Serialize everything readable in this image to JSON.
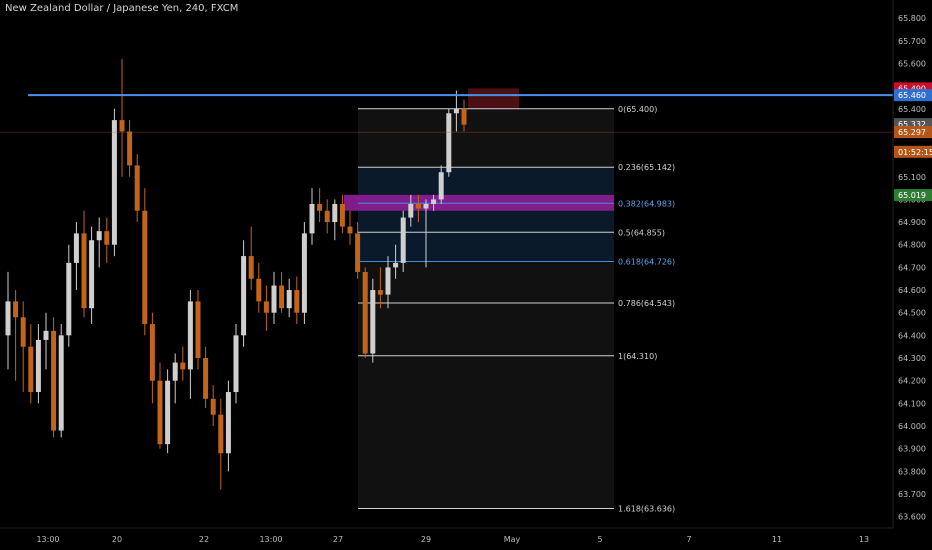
{
  "header": {
    "symbol_title": "New Zealand Dollar / Japanese Yen, 240, FXCM"
  },
  "colors": {
    "background": "#000000",
    "bull_candle": "#cfcfcf",
    "bear_candle": "#c2651b",
    "axis_text": "#bdbdbd",
    "horizontal_line": "#4a8fe8",
    "fib_box": "#111111",
    "fib_zone": "#0a1a2a",
    "fib_highlight": "#8e1f97",
    "stop_zone": "#4b1014",
    "target_zone": "#0f2a14"
  },
  "chart_data": {
    "type": "candlestick",
    "title": "New Zealand Dollar / Japanese Yen, 240, FXCM",
    "ylim": [
      63.55,
      65.88
    ],
    "y_ticks": [
      "65.800",
      "65.700",
      "65.600",
      "65.500",
      "65.400",
      "65.300",
      "65.200",
      "65.100",
      "65.000",
      "64.900",
      "64.800",
      "64.700",
      "64.600",
      "64.500",
      "64.400",
      "64.300",
      "64.200",
      "64.100",
      "64.000",
      "63.900",
      "63.800",
      "63.700",
      "63.600"
    ],
    "x_ticks": [
      "13:00",
      "20",
      "22",
      "13:00",
      "27",
      "29",
      "May",
      "5",
      "7",
      "11",
      "13"
    ],
    "candles": [
      {
        "o": 64.4,
        "h": 64.68,
        "l": 64.25,
        "c": 64.55
      },
      {
        "o": 64.55,
        "h": 64.6,
        "l": 64.2,
        "c": 64.48
      },
      {
        "o": 64.48,
        "h": 64.55,
        "l": 64.15,
        "c": 64.35
      },
      {
        "o": 64.35,
        "h": 64.45,
        "l": 64.1,
        "c": 64.15
      },
      {
        "o": 64.15,
        "h": 64.45,
        "l": 64.1,
        "c": 64.38
      },
      {
        "o": 64.38,
        "h": 64.5,
        "l": 64.25,
        "c": 64.42
      },
      {
        "o": 64.42,
        "h": 64.48,
        "l": 63.95,
        "c": 63.98
      },
      {
        "o": 63.98,
        "h": 64.45,
        "l": 63.95,
        "c": 64.4
      },
      {
        "o": 64.4,
        "h": 64.8,
        "l": 64.35,
        "c": 64.72
      },
      {
        "o": 64.72,
        "h": 64.9,
        "l": 64.6,
        "c": 64.85
      },
      {
        "o": 64.85,
        "h": 64.95,
        "l": 64.48,
        "c": 64.52
      },
      {
        "o": 64.52,
        "h": 64.88,
        "l": 64.45,
        "c": 64.82
      },
      {
        "o": 64.82,
        "h": 64.92,
        "l": 64.7,
        "c": 64.86
      },
      {
        "o": 64.86,
        "h": 64.92,
        "l": 64.72,
        "c": 64.8
      },
      {
        "o": 64.8,
        "h": 65.4,
        "l": 64.75,
        "c": 65.35
      },
      {
        "o": 65.35,
        "h": 65.62,
        "l": 65.1,
        "c": 65.3
      },
      {
        "o": 65.3,
        "h": 65.35,
        "l": 65.1,
        "c": 65.15
      },
      {
        "o": 65.15,
        "h": 65.2,
        "l": 64.9,
        "c": 64.95
      },
      {
        "o": 64.95,
        "h": 65.05,
        "l": 64.4,
        "c": 64.45
      },
      {
        "o": 64.45,
        "h": 64.5,
        "l": 64.1,
        "c": 64.2
      },
      {
        "o": 64.2,
        "h": 64.28,
        "l": 63.9,
        "c": 63.92
      },
      {
        "o": 63.92,
        "h": 64.25,
        "l": 63.88,
        "c": 64.2
      },
      {
        "o": 64.2,
        "h": 64.32,
        "l": 64.1,
        "c": 64.28
      },
      {
        "o": 64.28,
        "h": 64.35,
        "l": 64.2,
        "c": 64.25
      },
      {
        "o": 64.25,
        "h": 64.6,
        "l": 64.12,
        "c": 64.55
      },
      {
        "o": 64.55,
        "h": 64.6,
        "l": 64.25,
        "c": 64.3
      },
      {
        "o": 64.3,
        "h": 64.35,
        "l": 64.08,
        "c": 64.12
      },
      {
        "o": 64.12,
        "h": 64.18,
        "l": 64.0,
        "c": 64.05
      },
      {
        "o": 64.05,
        "h": 64.12,
        "l": 63.72,
        "c": 63.88
      },
      {
        "o": 63.88,
        "h": 64.2,
        "l": 63.8,
        "c": 64.15
      },
      {
        "o": 64.15,
        "h": 64.45,
        "l": 64.1,
        "c": 64.4
      },
      {
        "o": 64.4,
        "h": 64.82,
        "l": 64.35,
        "c": 64.75
      },
      {
        "o": 64.75,
        "h": 64.88,
        "l": 64.6,
        "c": 64.65
      },
      {
        "o": 64.65,
        "h": 64.72,
        "l": 64.5,
        "c": 64.55
      },
      {
        "o": 64.55,
        "h": 64.62,
        "l": 64.42,
        "c": 64.5
      },
      {
        "o": 64.5,
        "h": 64.68,
        "l": 64.45,
        "c": 64.62
      },
      {
        "o": 64.62,
        "h": 64.68,
        "l": 64.5,
        "c": 64.52
      },
      {
        "o": 64.52,
        "h": 64.65,
        "l": 64.48,
        "c": 64.6
      },
      {
        "o": 64.6,
        "h": 64.66,
        "l": 64.45,
        "c": 64.5
      },
      {
        "o": 64.5,
        "h": 64.9,
        "l": 64.45,
        "c": 64.85
      },
      {
        "o": 64.85,
        "h": 65.05,
        "l": 64.8,
        "c": 64.98
      },
      {
        "o": 64.98,
        "h": 65.05,
        "l": 64.9,
        "c": 64.95
      },
      {
        "o": 64.95,
        "h": 65.0,
        "l": 64.85,
        "c": 64.9
      },
      {
        "o": 64.9,
        "h": 65.0,
        "l": 64.82,
        "c": 64.98
      },
      {
        "o": 64.98,
        "h": 65.02,
        "l": 64.85,
        "c": 64.88
      },
      {
        "o": 64.88,
        "h": 64.95,
        "l": 64.8,
        "c": 64.85
      },
      {
        "o": 64.85,
        "h": 64.9,
        "l": 64.65,
        "c": 64.68
      },
      {
        "o": 64.68,
        "h": 64.7,
        "l": 64.3,
        "c": 64.32
      },
      {
        "o": 64.32,
        "h": 64.65,
        "l": 64.28,
        "c": 64.6
      },
      {
        "o": 64.6,
        "h": 64.7,
        "l": 64.52,
        "c": 64.58
      },
      {
        "o": 64.58,
        "h": 64.75,
        "l": 64.52,
        "c": 64.7
      },
      {
        "o": 64.7,
        "h": 64.8,
        "l": 64.65,
        "c": 64.72
      },
      {
        "o": 64.72,
        "h": 64.95,
        "l": 64.68,
        "c": 64.92
      },
      {
        "o": 64.92,
        "h": 65.02,
        "l": 64.88,
        "c": 64.98
      },
      {
        "o": 64.98,
        "h": 65.02,
        "l": 64.9,
        "c": 64.96
      },
      {
        "o": 64.96,
        "h": 65.0,
        "l": 64.7,
        "c": 64.98
      },
      {
        "o": 64.98,
        "h": 65.02,
        "l": 64.95,
        "c": 65.0
      },
      {
        "o": 65.0,
        "h": 65.15,
        "l": 64.98,
        "c": 65.12
      },
      {
        "o": 65.12,
        "h": 65.4,
        "l": 65.1,
        "c": 65.38
      },
      {
        "o": 65.38,
        "h": 65.48,
        "l": 65.3,
        "c": 65.4
      },
      {
        "o": 65.4,
        "h": 65.44,
        "l": 65.3,
        "c": 65.33
      }
    ],
    "horizontal_line": {
      "price": 65.46
    },
    "fibonacci": [
      {
        "ratio": "0",
        "price": "65.400",
        "label": "0(65.400)",
        "highlight": false
      },
      {
        "ratio": "0.236",
        "price": "65.142",
        "label": "0.236(65.142)",
        "highlight": false
      },
      {
        "ratio": "0.382",
        "price": "64.983",
        "label": "0.382(64.983)",
        "highlight": true
      },
      {
        "ratio": "0.5",
        "price": "64.855",
        "label": "0.5(64.855)",
        "highlight": false
      },
      {
        "ratio": "0.618",
        "price": "64.726",
        "label": "0.618(64.726)",
        "highlight": true
      },
      {
        "ratio": "0.786",
        "price": "64.543",
        "label": "0.786(64.543)",
        "highlight": false
      },
      {
        "ratio": "1",
        "price": "64.310",
        "label": "1(64.310)",
        "highlight": false
      },
      {
        "ratio": "1.618",
        "price": "63.636",
        "label": "1.618(63.636)",
        "highlight": false
      }
    ],
    "position_tool": {
      "stop": 65.49,
      "entry": 65.33,
      "target": 65.02
    },
    "price_badges": [
      {
        "label": "65.490",
        "price": 65.49,
        "color": "#c8102e"
      },
      {
        "label": "65.460",
        "price": 65.46,
        "color": "#2f6fd0"
      },
      {
        "label": "65.332",
        "price": 65.332,
        "color": "#555555"
      },
      {
        "label": "65.297",
        "price": 65.297,
        "color": "#b4561a"
      },
      {
        "label": "01:52:15",
        "price": 65.21,
        "color": "#b4561a"
      },
      {
        "label": "65.019",
        "price": 65.019,
        "color": "#2e7d32"
      }
    ]
  }
}
